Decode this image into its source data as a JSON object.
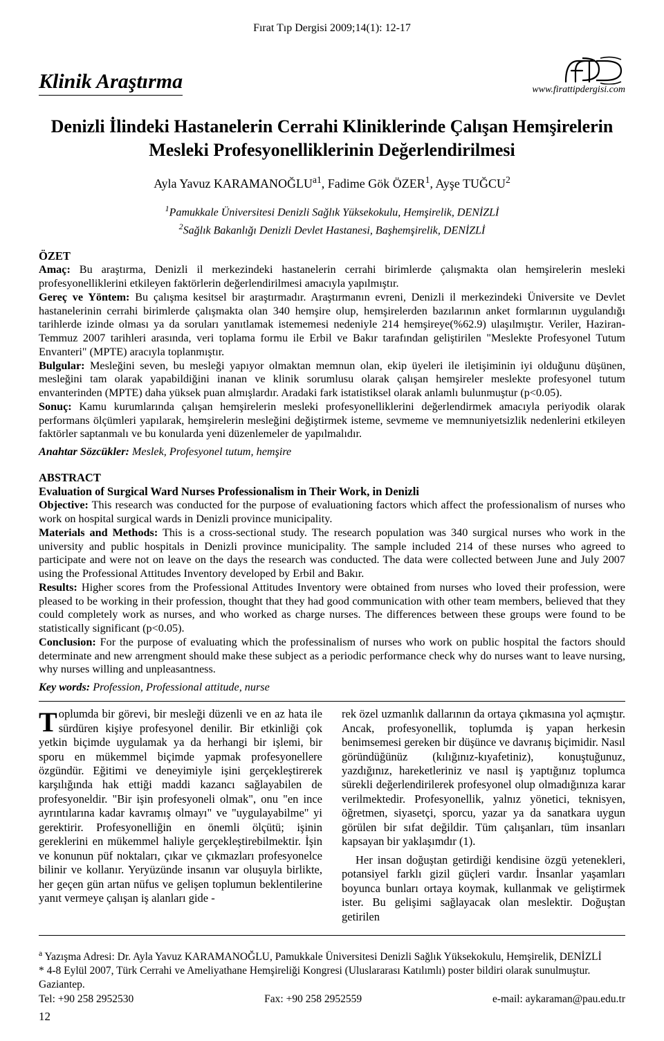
{
  "journal_header": "Fırat Tıp Dergisi 2009;14(1): 12-17",
  "section_label": "Klinik Araştırma",
  "website": "www.firattipdergisi.com",
  "title": "Denizli İlindeki Hastanelerin Cerrahi Kliniklerinde Çalışan Hemşirelerin Mesleki Profesyonelliklerinin Değerlendirilmesi",
  "authors_html": "Ayla Yavuz KARAMANOĞLU<sup>a1</sup>, Fadime Gök ÖZER<sup>1</sup>, Ayşe TUĞCU<sup>2</sup>",
  "affiliations": [
    "<sup>1</sup>Pamukkale Üniversitesi Denizli Sağlık Yüksekokulu, Hemşirelik, DENİZLİ",
    "<sup>2</sup>Sağlık Bakanlığı Denizli Devlet Hastanesi, Başhemşirelik, DENİZLİ"
  ],
  "ozet": {
    "heading": "ÖZET",
    "amac_label": "Amaç:",
    "amac": "Bu araştırma, Denizli il merkezindeki hastanelerin cerrahi birimlerde çalışmakta olan hemşirelerin mesleki profesyonelliklerini etkileyen faktörlerin değerlendirilmesi amacıyla yapılmıştır.",
    "gerec_label": "Gereç ve Yöntem:",
    "gerec": "Bu çalışma kesitsel bir araştırmadır. Araştırmanın evreni, Denizli il merkezindeki Üniversite ve Devlet hastanelerinin cerrahi birimlerde çalışmakta olan 340 hemşire olup, hemşirelerden bazılarının anket formlarının uygulandığı tarihlerde izinde olması ya da soruları yanıtlamak istememesi nedeniyle 214 hemşireye(%62.9) ulaşılmıştır. Veriler, Haziran-Temmuz 2007 tarihleri arasında, veri toplama formu ile Erbil ve Bakır tarafından geliştirilen \"Meslekte Profesyonel Tutum Envanteri\" (MPTE) aracıyla toplanmıştır.",
    "bulgular_label": "Bulgular:",
    "bulgular": "Mesleğini seven, bu mesleği yapıyor olmaktan memnun olan, ekip üyeleri ile iletişiminin iyi olduğunu düşünen, mesleğini tam olarak yapabildiğini inanan ve klinik sorumlusu olarak çalışan hemşireler meslekte profesyonel tutum envanterinden (MPTE) daha yüksek puan almışlardır. Aradaki fark istatistiksel olarak anlamlı bulunmuştur (p<0.05).",
    "sonuc_label": "Sonuç:",
    "sonuc": "Kamu kurumlarında çalışan hemşirelerin mesleki profesyonelliklerini değerlendirmek amacıyla periyodik olarak performans ölçümleri yapılarak, hemşirelerin mesleğini değiştirmek isteme, sevmeme ve memnuniyetsizlik nedenlerini etkileyen faktörler saptanmalı ve bu konularda yeni düzenlemeler de yapılmalıdır.",
    "kw_label": "Anahtar Sözcükler:",
    "kw": "Meslek, Profesyonel tutum, hemşire"
  },
  "abstract": {
    "heading": "ABSTRACT",
    "eng_title": "Evaluation of Surgical Ward Nurses Professionalism in Their Work, in Denizli",
    "obj_label": "Objective:",
    "obj": "This research was conducted for the purpose of evaluationing factors which affect the professionalism of nurses who work on hospital surgical wards in Denizli province municipality.",
    "mm_label": "Materials and Methods:",
    "mm": "This is a cross-sectional study. The research population was 340 surgical nurses who work in the university and public hospitals in Denizli province municipality. The sample included 214 of these nurses who agreed to participate and were not on leave on the days the research was conducted. The data were collected between June and July 2007 using the Professional Attitudes Inventory developed by Erbil and Bakır.",
    "res_label": "Results:",
    "res": "Higher scores from the Professional Attitudes Inventory were obtained from nurses who loved their profession, were pleased to be working in their profession, thought that they had good communication with other team members, believed that they could completely work as nurses, and who worked as charge nurses. The differences between these groups were found to be statistically significant (p<0.05).",
    "con_label": "Conclusion:",
    "con": "For the purpose of evaluating which the professinalism of nurses who work on public hospital the factors should determinate and new arrengment should make these subject as a periodic performance check why do nurses want to leave nursing, why nurses willing and unpleasantness.",
    "kw_label": "Key words:",
    "kw": "Profession, Professional attitude, nurse"
  },
  "body": {
    "dropcap": "T",
    "left_p1": "oplumda bir görevi, bir mesleği düzenli ve en az hata ile sürdüren kişiye profesyonel denilir. Bir etkinliği çok yetkin biçimde uygulamak ya da herhangi bir işlemi, bir sporu en mükemmel biçimde yapmak profesyonellere özgündür. Eğitimi ve deneyimiyle işini gerçekleştirerek karşılığında hak ettiği maddi kazancı sağlayabilen de profesyoneldir. \"Bir işin profesyoneli olmak\", onu \"en ince ayrıntılarına kadar kavramış olmayı\" ve \"uygulayabilme\" yi gerektirir. Profesyonelliğin en önemli ölçütü; işinin gereklerini en mükemmel haliyle gerçekleştirebilmektir. İşin ve konunun püf noktaları, çıkar ve çıkmazları profesyonelce bilinir ve kollanır. Yeryüzünde insanın var oluşuyla birlikte, her geçen gün artan nüfus ve gelişen toplumun beklentilerine yanıt vermeye çalışan iş alanları gide -",
    "right_p1": "rek özel uzmanlık dallarının da ortaya çıkmasına yol açmıştır. Ancak, profesyonellik, toplumda iş yapan herkesin benimsemesi gereken bir düşünce ve davranış biçimidir. Nasıl göründüğünüz (kılığınız-kıyafetiniz), konuştuğunuz, yazdığınız, hareketleriniz ve nasıl iş yaptığınız toplumca sürekli değerlendirilerek profesyonel olup olmadığınıza karar verilmektedir. Profesyonellik, yalnız yönetici, teknisyen, öğretmen, siyasetçi, sporcu, yazar ya da sanatkara uygun görülen bir sıfat değildir. Tüm çalışanları, tüm insanları kapsayan bir yaklaşımdır (1).",
    "right_p2": "Her insan doğuştan getirdiği kendisine özgü yetenekleri, potansiyel farklı gizil güçleri vardır. İnsanlar yaşamları boyunca bunları ortaya koymak, kullanmak ve geliştirmek ister. Bu gelişimi sağlayacak olan meslektir. Doğuştan getirilen"
  },
  "footer": {
    "corr": "<sup>a</sup> Yazışma Adresi: Dr. Ayla Yavuz KARAMANOĞLU, Pamukkale Üniversitesi Denizli Sağlık Yüksekokulu, Hemşirelik, DENİZLİ",
    "note": "* 4-8 Eylül 2007, Türk Cerrahi ve Ameliyathane Hemşireliği Kongresi (Uluslararası Katılımlı) poster bildiri olarak sunulmuştur. Gaziantep.",
    "tel": "Tel: +90 258 2952530",
    "fax": "Fax: +90 258 2952559",
    "email": "e-mail: aykaraman@pau.edu.tr",
    "page": "12"
  },
  "logo": {
    "stroke": "#000000",
    "bg": "#ffffff",
    "width": 92,
    "height": 54
  }
}
